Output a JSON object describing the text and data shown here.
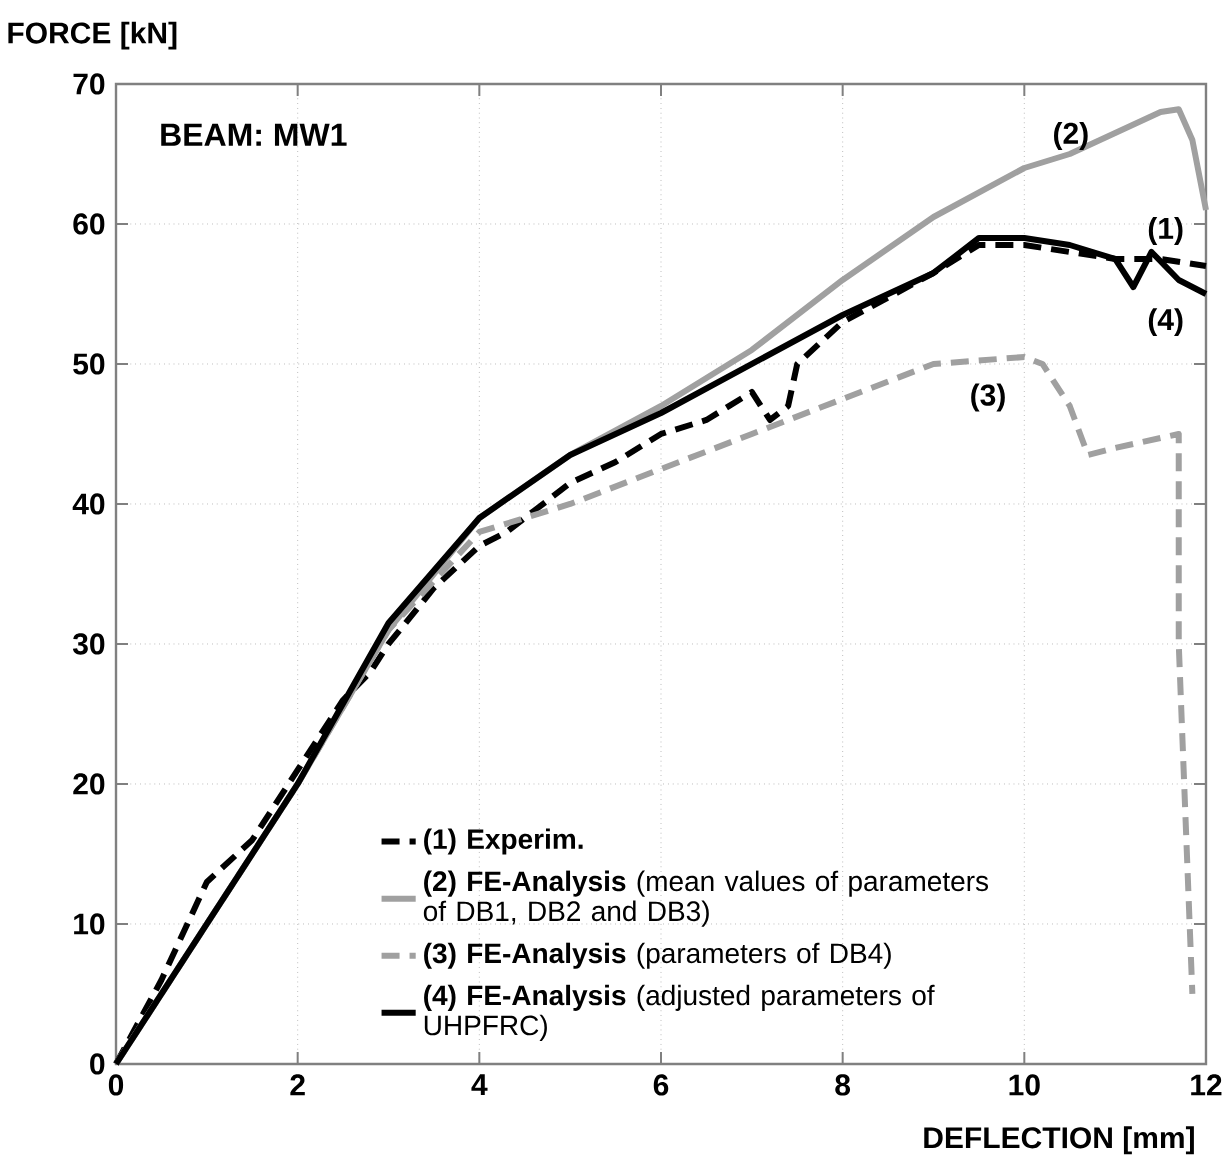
{
  "chart_data": {
    "type": "line",
    "title": "BEAM: MW1",
    "xlabel": "DEFLECTION [mm]",
    "ylabel": "FORCE [kN]",
    "xlim": [
      0,
      12
    ],
    "ylim": [
      0,
      70
    ],
    "xticks": [
      0,
      2,
      4,
      6,
      8,
      10,
      12
    ],
    "yticks": [
      0,
      10,
      20,
      30,
      40,
      50,
      60,
      70
    ],
    "grid": true,
    "legend": "bottom",
    "marker": "none",
    "series": [
      {
        "name": "**(1) Experim.**",
        "color": "#000000",
        "line_style": "dashed",
        "x": [
          0,
          0.5,
          1,
          1.5,
          2,
          2.5,
          2.8,
          3,
          3.5,
          4,
          4.3,
          4.5,
          5,
          5.5,
          6,
          6.5,
          7,
          7.2,
          7.4,
          7.5,
          8,
          9,
          9.5,
          10,
          10.5,
          11,
          11.5,
          12
        ],
        "values": [
          0,
          6,
          13,
          16,
          21,
          26,
          28,
          30,
          34,
          37,
          38,
          39,
          41.5,
          43,
          45,
          46,
          48,
          46,
          47,
          50,
          53,
          56.5,
          58.5,
          58.5,
          58,
          57.5,
          57.5,
          57
        ]
      },
      {
        "name": "**(2) FE-Analysis** (mean values of parameters of DB1, DB2 and DB3)",
        "color": "#a0a0a0",
        "line_style": "solid",
        "x": [
          0,
          1,
          2,
          3,
          4,
          5,
          6,
          7,
          8,
          9,
          10,
          10.5,
          11,
          11.5,
          11.7,
          11.85,
          12
        ],
        "values": [
          0,
          10,
          20,
          31,
          39,
          43.5,
          47,
          51,
          56,
          60.5,
          64,
          65,
          66.5,
          68,
          68.2,
          66,
          61
        ]
      },
      {
        "name": "**(3) FE-Analysis** (parameters of DB4)",
        "color": "#a0a0a0",
        "line_style": "dashed",
        "x": [
          0,
          1,
          2,
          3,
          4,
          4.5,
          5,
          6,
          7,
          8,
          9,
          10,
          10.2,
          10.5,
          10.7,
          11,
          11.7,
          11.7,
          11.85
        ],
        "values": [
          0,
          10,
          20,
          31,
          38,
          39,
          40,
          42.5,
          45,
          47.5,
          50,
          50.5,
          50,
          47,
          43.5,
          44,
          45,
          30,
          5
        ]
      },
      {
        "name": "**(4) FE-Analysis** (adjusted parameters of UHPFRC)",
        "color": "#000000",
        "line_style": "solid",
        "x": [
          0,
          1,
          2,
          3,
          4,
          5,
          6,
          7,
          8,
          9,
          9.5,
          10,
          10.5,
          11,
          11.2,
          11.4,
          11.7,
          12
        ],
        "values": [
          0,
          10,
          20,
          31.5,
          39,
          43.5,
          46.5,
          50,
          53.5,
          56.5,
          59,
          59,
          58.5,
          57.5,
          55.5,
          58,
          56,
          55
        ]
      }
    ],
    "annotations": [
      "(1)",
      "(2)",
      "(3)",
      "(4)"
    ]
  }
}
